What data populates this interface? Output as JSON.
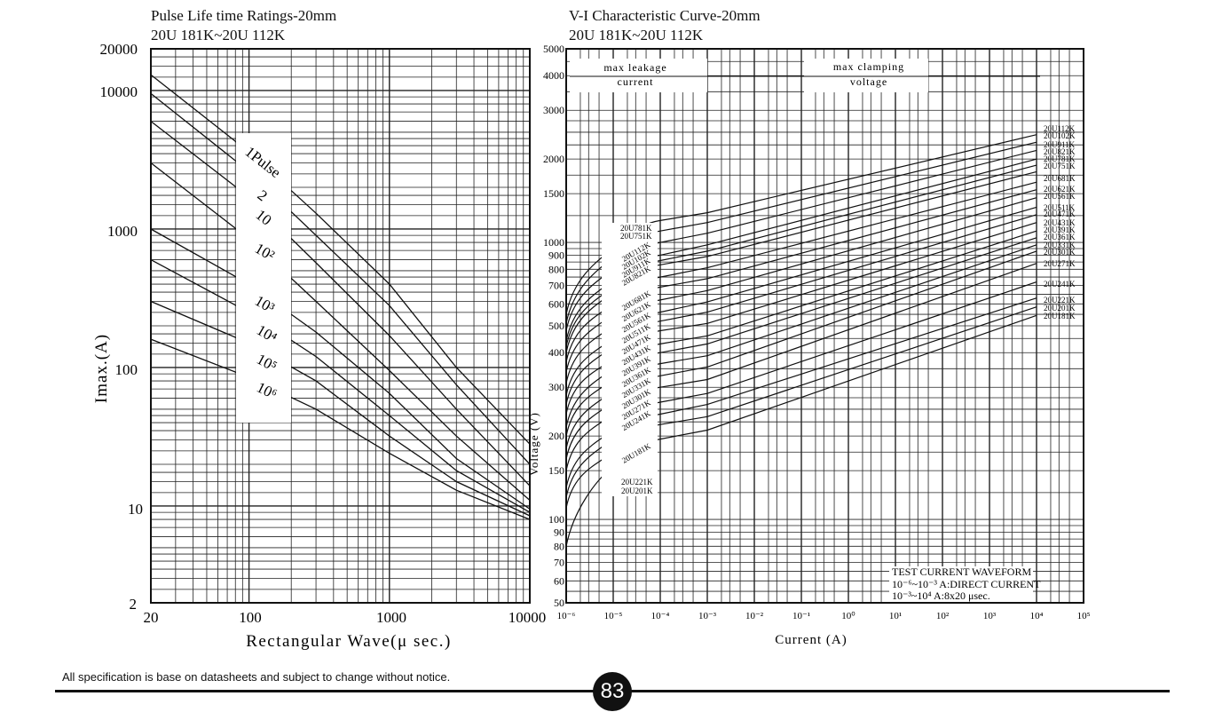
{
  "left_chart": {
    "title": "Pulse Life time Ratings-20mm",
    "subtitle": "20U 181K~20U 112K",
    "ylabel": "Imax.(A)",
    "xlabel": "Rectangular Wave(μ sec.)",
    "x_ticks": [
      "20",
      "100",
      "1000",
      "10000"
    ],
    "y_ticks": [
      "20000",
      "10000",
      "1000",
      "100",
      "10",
      "2"
    ],
    "curve_labels": [
      "1Pulse",
      "2",
      "10",
      "10²",
      "10³",
      "10⁴",
      "10⁵",
      "10⁶"
    ]
  },
  "right_chart": {
    "title": "V-I Characteristic Curve-20mm",
    "subtitle": "20U 181K~20U 112K",
    "ylabel": "Voltage (V)",
    "xlabel": "Current (A)",
    "y_ticks": [
      "5000",
      "4000",
      "3000",
      "2000",
      "1500",
      "1000",
      "900",
      "800",
      "700",
      "600",
      "500",
      "400",
      "300",
      "200",
      "150",
      "100",
      "90",
      "80",
      "70",
      "60",
      "50"
    ],
    "x_ticks": [
      "10⁻⁶",
      "10⁻⁵",
      "10⁻⁴",
      "10⁻³",
      "10⁻²",
      "10⁻¹",
      "10⁰",
      "10¹",
      "10²",
      "10³",
      "10⁴",
      "10⁵"
    ],
    "max_leakage": [
      "max leakage",
      "current"
    ],
    "max_clamping": [
      "max clamping",
      "voltage"
    ],
    "waveform_title": "TEST CURRENT WAVEFORM",
    "waveform_line1": "10⁻⁶~10⁻³ A:DIRECT CURRENT",
    "waveform_line2": "10⁻³~10⁴ A:8x20 μsec.",
    "right_labels": [
      "20U112K",
      "20U102K",
      "20U911K",
      "20U821K",
      "20U781K",
      "20U751K",
      "20U681K",
      "20U621K",
      "20U561K",
      "20U511K",
      "20U471K",
      "20U431K",
      "20U391K",
      "20U361K",
      "20U331K",
      "20U301K",
      "20U271K",
      "20U241K",
      "20U221K",
      "20U201K",
      "20U181K"
    ],
    "left_top_labels": [
      "20U781K",
      "20U751K"
    ],
    "left_diag_labels": [
      "20U112K",
      "20U102K",
      "20U911K",
      "20U821K"
    ],
    "left_mid_labels": [
      "20U681K",
      "20U621K",
      "20U561K",
      "20U511K",
      "20U471K",
      "20U431K",
      "20U391K",
      "20U361K",
      "20U331K",
      "20U301K",
      "20U271K",
      "20U241K"
    ],
    "left_bottom_labels": [
      "20U181K",
      "20U221K",
      "20U201K"
    ]
  },
  "footer": {
    "note": "All specification is base on datasheets and subject to change without notice.",
    "page_number": "83"
  },
  "chart_data": [
    {
      "type": "line",
      "title": "Pulse Life time Ratings-20mm",
      "subtitle": "20U 181K~20U 112K",
      "xlabel": "Rectangular Wave(μ sec.)",
      "ylabel": "Imax.(A)",
      "xscale": "log",
      "yscale": "log",
      "xlim": [
        20,
        10000
      ],
      "ylim": [
        2,
        20000
      ],
      "grid": true,
      "series": [
        {
          "name": "1Pulse",
          "points": [
            [
              20,
              13000
            ],
            [
              100,
              3600
            ],
            [
              300,
              1300
            ],
            [
              1000,
              400
            ],
            [
              3000,
              100
            ],
            [
              10000,
              28
            ]
          ]
        },
        {
          "name": "2",
          "points": [
            [
              20,
              9500
            ],
            [
              100,
              2600
            ],
            [
              300,
              900
            ],
            [
              1000,
              280
            ],
            [
              3000,
              75
            ],
            [
              10000,
              20
            ]
          ]
        },
        {
          "name": "10",
          "points": [
            [
              20,
              6000
            ],
            [
              100,
              1700
            ],
            [
              300,
              570
            ],
            [
              1000,
              170
            ],
            [
              3000,
              50
            ],
            [
              10000,
              14
            ]
          ]
        },
        {
          "name": "10²",
          "points": [
            [
              20,
              3000
            ],
            [
              100,
              850
            ],
            [
              300,
              300
            ],
            [
              1000,
              95
            ],
            [
              3000,
              32
            ],
            [
              10000,
              11
            ]
          ]
        },
        {
          "name": "10³",
          "points": [
            [
              20,
              1000
            ],
            [
              100,
              400
            ],
            [
              300,
              180
            ],
            [
              1000,
              65
            ],
            [
              3000,
              22
            ],
            [
              10000,
              9.5
            ]
          ]
        },
        {
          "name": "10⁴",
          "points": [
            [
              20,
              600
            ],
            [
              100,
              250
            ],
            [
              300,
              120
            ],
            [
              1000,
              45
            ],
            [
              3000,
              18
            ],
            [
              10000,
              9
            ]
          ]
        },
        {
          "name": "10⁵",
          "points": [
            [
              20,
              300
            ],
            [
              100,
              150
            ],
            [
              300,
              80
            ],
            [
              1000,
              32
            ],
            [
              3000,
              15
            ],
            [
              10000,
              8.5
            ]
          ]
        },
        {
          "name": "10⁶",
          "points": [
            [
              20,
              160
            ],
            [
              100,
              85
            ],
            [
              300,
              50
            ],
            [
              1000,
              24
            ],
            [
              3000,
              13
            ],
            [
              10000,
              8
            ]
          ]
        }
      ]
    },
    {
      "type": "line",
      "title": "V-I Characteristic Curve-20mm",
      "subtitle": "20U 181K~20U 112K",
      "xlabel": "Current (A)",
      "ylabel": "Voltage (V)",
      "xscale": "log",
      "yscale": "log",
      "xlim": [
        1e-06,
        100000
      ],
      "ylim": [
        50,
        5000
      ],
      "grid": true,
      "series": [
        {
          "name": "20U112K",
          "points": [
            [
              1e-06,
              550
            ],
            [
              1e-05,
              950
            ],
            [
              0.0001,
              1200
            ],
            [
              0.001,
              1280
            ],
            [
              10000,
              2450
            ]
          ]
        },
        {
          "name": "20U102K",
          "points": [
            [
              1e-06,
              510
            ],
            [
              1e-05,
              880
            ],
            [
              0.0001,
              1100
            ],
            [
              0.001,
              1180
            ],
            [
              10000,
              2300
            ]
          ]
        },
        {
          "name": "20U911K",
          "points": [
            [
              1e-06,
              480
            ],
            [
              1e-05,
              800
            ],
            [
              0.0001,
              1000
            ],
            [
              0.001,
              1080
            ],
            [
              10000,
              2150
            ]
          ]
        },
        {
          "name": "20U821K",
          "points": [
            [
              1e-06,
              440
            ],
            [
              1e-05,
              730
            ],
            [
              0.0001,
              900
            ],
            [
              0.001,
              980
            ],
            [
              10000,
              2000
            ]
          ]
        },
        {
          "name": "20U781K",
          "points": [
            [
              1e-06,
              420
            ],
            [
              1e-05,
              690
            ],
            [
              0.0001,
              860
            ],
            [
              0.001,
              930
            ],
            [
              10000,
              1900
            ]
          ]
        },
        {
          "name": "20U751K",
          "points": [
            [
              1e-06,
              400
            ],
            [
              1e-05,
              660
            ],
            [
              0.0001,
              830
            ],
            [
              0.001,
              890
            ],
            [
              10000,
              1800
            ]
          ]
        },
        {
          "name": "20U681K",
          "points": [
            [
              1e-06,
              370
            ],
            [
              1e-05,
              600
            ],
            [
              0.0001,
              750
            ],
            [
              0.001,
              810
            ],
            [
              10000,
              1650
            ]
          ]
        },
        {
          "name": "20U621K",
          "points": [
            [
              1e-06,
              340
            ],
            [
              1e-05,
              550
            ],
            [
              0.0001,
              690
            ],
            [
              0.001,
              740
            ],
            [
              10000,
              1550
            ]
          ]
        },
        {
          "name": "20U561K",
          "points": [
            [
              1e-06,
              310
            ],
            [
              1e-05,
              500
            ],
            [
              0.0001,
              620
            ],
            [
              0.001,
              670
            ],
            [
              10000,
              1450
            ]
          ]
        },
        {
          "name": "20U511K",
          "points": [
            [
              1e-06,
              280
            ],
            [
              1e-05,
              450
            ],
            [
              0.0001,
              560
            ],
            [
              0.001,
              610
            ],
            [
              10000,
              1340
            ]
          ]
        },
        {
          "name": "20U471K",
          "points": [
            [
              1e-06,
              260
            ],
            [
              1e-05,
              420
            ],
            [
              0.0001,
              520
            ],
            [
              0.001,
              560
            ],
            [
              10000,
              1260
            ]
          ]
        },
        {
          "name": "20U431K",
          "points": [
            [
              1e-06,
              240
            ],
            [
              1e-05,
              380
            ],
            [
              0.0001,
              480
            ],
            [
              0.001,
              510
            ],
            [
              10000,
              1180
            ]
          ]
        },
        {
          "name": "20U391K",
          "points": [
            [
              1e-06,
              215
            ],
            [
              1e-05,
              350
            ],
            [
              0.0001,
              430
            ],
            [
              0.001,
              460
            ],
            [
              10000,
              1100
            ]
          ]
        },
        {
          "name": "20U361K",
          "points": [
            [
              1e-06,
              200
            ],
            [
              1e-05,
              320
            ],
            [
              0.0001,
              400
            ],
            [
              0.001,
              430
            ],
            [
              10000,
              1040
            ]
          ]
        },
        {
          "name": "20U331K",
          "points": [
            [
              1e-06,
              180
            ],
            [
              1e-05,
              290
            ],
            [
              0.0001,
              365
            ],
            [
              0.001,
              390
            ],
            [
              10000,
              980
            ]
          ]
        },
        {
          "name": "20U301K",
          "points": [
            [
              1e-06,
              165
            ],
            [
              1e-05,
              265
            ],
            [
              0.0001,
              330
            ],
            [
              0.001,
              355
            ],
            [
              10000,
              930
            ]
          ]
        },
        {
          "name": "20U271K",
          "points": [
            [
              1e-06,
              150
            ],
            [
              1e-05,
              240
            ],
            [
              0.0001,
              300
            ],
            [
              0.001,
              320
            ],
            [
              10000,
              840
            ]
          ]
        },
        {
          "name": "20U241K",
          "points": [
            [
              1e-06,
              130
            ],
            [
              1e-05,
              210
            ],
            [
              0.0001,
              265
            ],
            [
              0.001,
              285
            ],
            [
              10000,
              720
            ]
          ]
        },
        {
          "name": "20U221K",
          "points": [
            [
              1e-06,
              120
            ],
            [
              1e-05,
              195
            ],
            [
              0.0001,
              240
            ],
            [
              0.001,
              260
            ],
            [
              10000,
              630
            ]
          ]
        },
        {
          "name": "20U201K",
          "points": [
            [
              1e-06,
              110
            ],
            [
              1e-05,
              175
            ],
            [
              0.0001,
              220
            ],
            [
              0.001,
              235
            ],
            [
              10000,
              585
            ]
          ]
        },
        {
          "name": "20U181K",
          "points": [
            [
              1e-06,
              80
            ],
            [
              1e-05,
              155
            ],
            [
              0.0001,
              195
            ],
            [
              0.001,
              210
            ],
            [
              10000,
              545
            ]
          ]
        }
      ]
    }
  ]
}
